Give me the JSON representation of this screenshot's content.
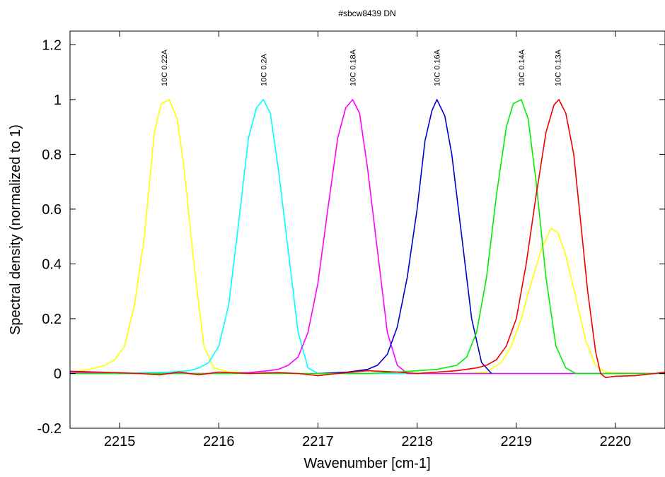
{
  "chart_data": {
    "type": "line",
    "title": "#sbcw8439 DN",
    "xlabel": "Wavenumber [cm-1]",
    "ylabel": "Spectral density (normalized to 1)",
    "xlim": [
      2214.5,
      2220.5
    ],
    "ylim": [
      -0.2,
      1.25
    ],
    "xticks": [
      {
        "value": 2215,
        "label": "2215"
      },
      {
        "value": 2216,
        "label": "2216"
      },
      {
        "value": 2217,
        "label": "2217"
      },
      {
        "value": 2218,
        "label": "2218"
      },
      {
        "value": 2219,
        "label": "2219"
      },
      {
        "value": 2220,
        "label": "2220"
      }
    ],
    "yticks": [
      {
        "value": -0.2,
        "label": "-0.2"
      },
      {
        "value": 0,
        "label": "0"
      },
      {
        "value": 0.2,
        "label": "0.2"
      },
      {
        "value": 0.4,
        "label": "0.4"
      },
      {
        "value": 0.6,
        "label": "0.6"
      },
      {
        "value": 0.8,
        "label": "0.8"
      },
      {
        "value": 1,
        "label": "1"
      },
      {
        "value": 1.2,
        "label": "1.2"
      }
    ],
    "grid": false,
    "annotations": [
      {
        "text": "10C 0.22A",
        "x": 2215.45
      },
      {
        "text": "10C 0.2A",
        "x": 2216.45
      },
      {
        "text": "10C 0.18A",
        "x": 2217.35
      },
      {
        "text": "10C 0.16A",
        "x": 2218.2
      },
      {
        "text": "10C 0.14A",
        "x": 2219.05
      },
      {
        "text": "10C 0.13A",
        "x": 2219.42
      }
    ],
    "series": [
      {
        "color": "#ffff00",
        "points": [
          [
            2214.5,
            0.005
          ],
          [
            2214.7,
            0.015
          ],
          [
            2214.85,
            0.03
          ],
          [
            2214.95,
            0.05
          ],
          [
            2215.05,
            0.1
          ],
          [
            2215.15,
            0.25
          ],
          [
            2215.25,
            0.5
          ],
          [
            2215.35,
            0.88
          ],
          [
            2215.42,
            0.985
          ],
          [
            2215.5,
            1.0
          ],
          [
            2215.58,
            0.93
          ],
          [
            2215.65,
            0.75
          ],
          [
            2215.75,
            0.4
          ],
          [
            2215.85,
            0.1
          ],
          [
            2215.95,
            0.02
          ],
          [
            2216.1,
            0.005
          ],
          [
            2216.5,
            0.0
          ],
          [
            2217.5,
            0.0
          ],
          [
            2218.0,
            0.0
          ],
          [
            2218.5,
            0.0
          ],
          [
            2218.7,
            0.005
          ],
          [
            2218.85,
            0.04
          ],
          [
            2218.95,
            0.1
          ],
          [
            2219.05,
            0.2
          ],
          [
            2219.15,
            0.33
          ],
          [
            2219.25,
            0.45
          ],
          [
            2219.35,
            0.53
          ],
          [
            2219.42,
            0.515
          ],
          [
            2219.5,
            0.43
          ],
          [
            2219.6,
            0.28
          ],
          [
            2219.7,
            0.12
          ],
          [
            2219.8,
            0.03
          ],
          [
            2219.9,
            0.005
          ],
          [
            2220.0,
            0.002
          ],
          [
            2220.5,
            0.0
          ]
        ]
      },
      {
        "color": "#00ffff",
        "points": [
          [
            2214.5,
            0.0
          ],
          [
            2215.0,
            0.0
          ],
          [
            2215.5,
            0.005
          ],
          [
            2215.7,
            0.01
          ],
          [
            2215.8,
            0.02
          ],
          [
            2215.9,
            0.04
          ],
          [
            2216.0,
            0.1
          ],
          [
            2216.1,
            0.25
          ],
          [
            2216.2,
            0.55
          ],
          [
            2216.3,
            0.86
          ],
          [
            2216.38,
            0.97
          ],
          [
            2216.45,
            1.0
          ],
          [
            2216.52,
            0.95
          ],
          [
            2216.6,
            0.75
          ],
          [
            2216.7,
            0.45
          ],
          [
            2216.8,
            0.15
          ],
          [
            2216.9,
            0.02
          ],
          [
            2217.0,
            0.0
          ],
          [
            2218.0,
            0.0
          ],
          [
            2219.0,
            0.0
          ],
          [
            2220.0,
            0.0
          ],
          [
            2220.5,
            0.0
          ]
        ]
      },
      {
        "color": "#ff00ff",
        "points": [
          [
            2214.5,
            0.005
          ],
          [
            2215.0,
            0.0
          ],
          [
            2215.5,
            0.0
          ],
          [
            2216.0,
            0.0
          ],
          [
            2216.3,
            0.003
          ],
          [
            2216.5,
            0.01
          ],
          [
            2216.6,
            0.015
          ],
          [
            2216.7,
            0.03
          ],
          [
            2216.8,
            0.06
          ],
          [
            2216.9,
            0.15
          ],
          [
            2217.0,
            0.33
          ],
          [
            2217.1,
            0.6
          ],
          [
            2217.2,
            0.86
          ],
          [
            2217.28,
            0.97
          ],
          [
            2217.35,
            1.0
          ],
          [
            2217.42,
            0.95
          ],
          [
            2217.5,
            0.75
          ],
          [
            2217.6,
            0.45
          ],
          [
            2217.7,
            0.15
          ],
          [
            2217.8,
            0.03
          ],
          [
            2217.9,
            0.0
          ],
          [
            2218.5,
            0.0
          ],
          [
            2219.0,
            0.0
          ],
          [
            2220.0,
            0.0
          ],
          [
            2220.5,
            0.0
          ]
        ]
      },
      {
        "color": "#0000cc",
        "points": [
          [
            2217.0,
            0.0
          ],
          [
            2217.3,
            0.005
          ],
          [
            2217.5,
            0.015
          ],
          [
            2217.6,
            0.03
          ],
          [
            2217.7,
            0.07
          ],
          [
            2217.8,
            0.17
          ],
          [
            2217.9,
            0.35
          ],
          [
            2218.0,
            0.6
          ],
          [
            2218.08,
            0.85
          ],
          [
            2218.15,
            0.96
          ],
          [
            2218.2,
            1.0
          ],
          [
            2218.28,
            0.94
          ],
          [
            2218.35,
            0.8
          ],
          [
            2218.45,
            0.5
          ],
          [
            2218.55,
            0.2
          ],
          [
            2218.65,
            0.04
          ],
          [
            2218.75,
            0.0
          ]
        ]
      },
      {
        "color": "#00ee00",
        "points": [
          [
            2214.5,
            0.0
          ],
          [
            2216.0,
            0.0
          ],
          [
            2217.0,
            0.0
          ],
          [
            2217.5,
            0.0
          ],
          [
            2217.8,
            0.005
          ],
          [
            2218.0,
            0.01
          ],
          [
            2218.2,
            0.015
          ],
          [
            2218.4,
            0.03
          ],
          [
            2218.5,
            0.06
          ],
          [
            2218.6,
            0.15
          ],
          [
            2218.7,
            0.35
          ],
          [
            2218.8,
            0.65
          ],
          [
            2218.9,
            0.9
          ],
          [
            2218.97,
            0.985
          ],
          [
            2219.05,
            1.0
          ],
          [
            2219.12,
            0.93
          ],
          [
            2219.2,
            0.7
          ],
          [
            2219.3,
            0.35
          ],
          [
            2219.4,
            0.1
          ],
          [
            2219.5,
            0.02
          ],
          [
            2219.6,
            0.0
          ],
          [
            2220.5,
            0.0
          ]
        ]
      },
      {
        "color": "#ee0000",
        "points": [
          [
            2214.5,
            0.008
          ],
          [
            2214.8,
            0.005
          ],
          [
            2215.2,
            0.0
          ],
          [
            2215.4,
            -0.005
          ],
          [
            2215.6,
            0.005
          ],
          [
            2215.8,
            -0.005
          ],
          [
            2216.0,
            0.005
          ],
          [
            2216.3,
            0.0
          ],
          [
            2216.6,
            0.003
          ],
          [
            2216.8,
            0.0
          ],
          [
            2217.0,
            -0.008
          ],
          [
            2217.2,
            0.0
          ],
          [
            2217.5,
            0.01
          ],
          [
            2217.8,
            0.005
          ],
          [
            2218.0,
            0.0
          ],
          [
            2218.2,
            0.005
          ],
          [
            2218.4,
            0.01
          ],
          [
            2218.6,
            0.02
          ],
          [
            2218.7,
            0.03
          ],
          [
            2218.8,
            0.05
          ],
          [
            2218.9,
            0.1
          ],
          [
            2219.0,
            0.2
          ],
          [
            2219.1,
            0.4
          ],
          [
            2219.2,
            0.65
          ],
          [
            2219.3,
            0.88
          ],
          [
            2219.38,
            0.98
          ],
          [
            2219.43,
            1.0
          ],
          [
            2219.5,
            0.95
          ],
          [
            2219.58,
            0.8
          ],
          [
            2219.65,
            0.55
          ],
          [
            2219.72,
            0.3
          ],
          [
            2219.8,
            0.08
          ],
          [
            2219.85,
            0.0
          ],
          [
            2219.9,
            -0.015
          ],
          [
            2220.0,
            -0.01
          ],
          [
            2220.2,
            -0.008
          ],
          [
            2220.4,
            0.0
          ],
          [
            2220.5,
            0.005
          ]
        ]
      }
    ]
  }
}
